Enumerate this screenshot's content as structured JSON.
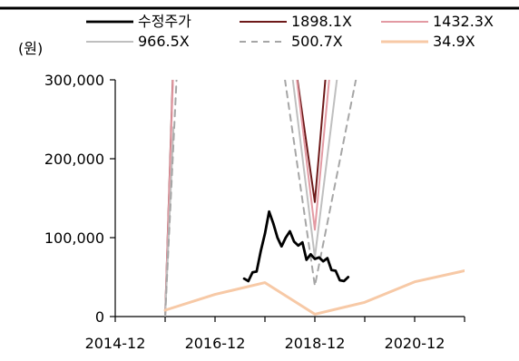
{
  "chart_data": {
    "type": "line",
    "y_unit_label": "(원)",
    "x_ticks": [
      "2014-12",
      "2016-12",
      "2018-12",
      "2020-12"
    ],
    "xlim": [
      "2014-12",
      "2021-12"
    ],
    "y_ticks": [
      "0",
      "100,000",
      "200,000",
      "300,000"
    ],
    "ylim": [
      0,
      300000
    ],
    "grid": false,
    "legend": "top",
    "series": [
      {
        "name": "수정주가",
        "color": "#000000",
        "dash": "solid",
        "width": 2.8,
        "points": [
          [
            "2017-07",
            48000
          ],
          [
            "2017-08",
            45000
          ],
          [
            "2017-09",
            56000
          ],
          [
            "2017-10",
            57000
          ],
          [
            "2017-11",
            83000
          ],
          [
            "2017-12",
            105000
          ],
          [
            "2018-01",
            133000
          ],
          [
            "2018-02",
            118000
          ],
          [
            "2018-03",
            100000
          ],
          [
            "2018-04",
            89000
          ],
          [
            "2018-05",
            100000
          ],
          [
            "2018-06",
            108000
          ],
          [
            "2018-07",
            95000
          ],
          [
            "2018-08",
            90000
          ],
          [
            "2018-09",
            94000
          ],
          [
            "2018-10",
            72000
          ],
          [
            "2018-11",
            79000
          ],
          [
            "2018-12",
            73000
          ],
          [
            "2019-01",
            75000
          ],
          [
            "2019-02",
            70000
          ],
          [
            "2019-03",
            74000
          ],
          [
            "2019-04",
            59000
          ],
          [
            "2019-05",
            58000
          ],
          [
            "2019-06",
            46000
          ],
          [
            "2019-07",
            45000
          ],
          [
            "2019-08",
            50000
          ]
        ]
      },
      {
        "name": "1898.1X",
        "color": "#6e1a1a",
        "dash": "solid",
        "width": 2,
        "points": [
          [
            "2015-12",
            0
          ],
          [
            "2016-02",
            330000
          ],
          null,
          [
            "2018-07",
            330000
          ],
          [
            "2018-12",
            145000
          ],
          [
            "2019-03",
            330000
          ]
        ]
      },
      {
        "name": "1432.3X",
        "color": "#e39aa3",
        "dash": "solid",
        "width": 2,
        "points": [
          [
            "2015-12",
            0
          ],
          [
            "2016-02",
            320000
          ],
          null,
          [
            "2018-07",
            330000
          ],
          [
            "2018-12",
            110000
          ],
          [
            "2019-04",
            330000
          ]
        ]
      },
      {
        "name": "966.5X",
        "color": "#bfbfbf",
        "dash": "solid",
        "width": 2,
        "points": [
          [
            "2015-12",
            0
          ],
          [
            "2016-02",
            240000
          ],
          null,
          [
            "2018-06",
            330000
          ],
          [
            "2018-12",
            75000
          ],
          [
            "2019-06",
            330000
          ]
        ]
      },
      {
        "name": "500.7X",
        "color": "#a6a6a6",
        "dash": "dashed",
        "width": 2,
        "points": [
          [
            "2015-12",
            0
          ],
          [
            "2016-03",
            330000
          ],
          null,
          [
            "2018-04",
            330000
          ],
          [
            "2018-12",
            39000
          ],
          [
            "2019-11",
            330000
          ]
        ]
      },
      {
        "name": "34.9X",
        "color": "#f7c9a6",
        "dash": "solid",
        "width": 3,
        "points": [
          [
            "2015-12",
            8000
          ],
          [
            "2016-12",
            28000
          ],
          [
            "2017-12",
            43000
          ],
          [
            "2018-12",
            3000
          ],
          [
            "2019-12",
            18000
          ],
          [
            "2020-12",
            44000
          ],
          [
            "2021-12",
            58000
          ]
        ]
      }
    ]
  }
}
